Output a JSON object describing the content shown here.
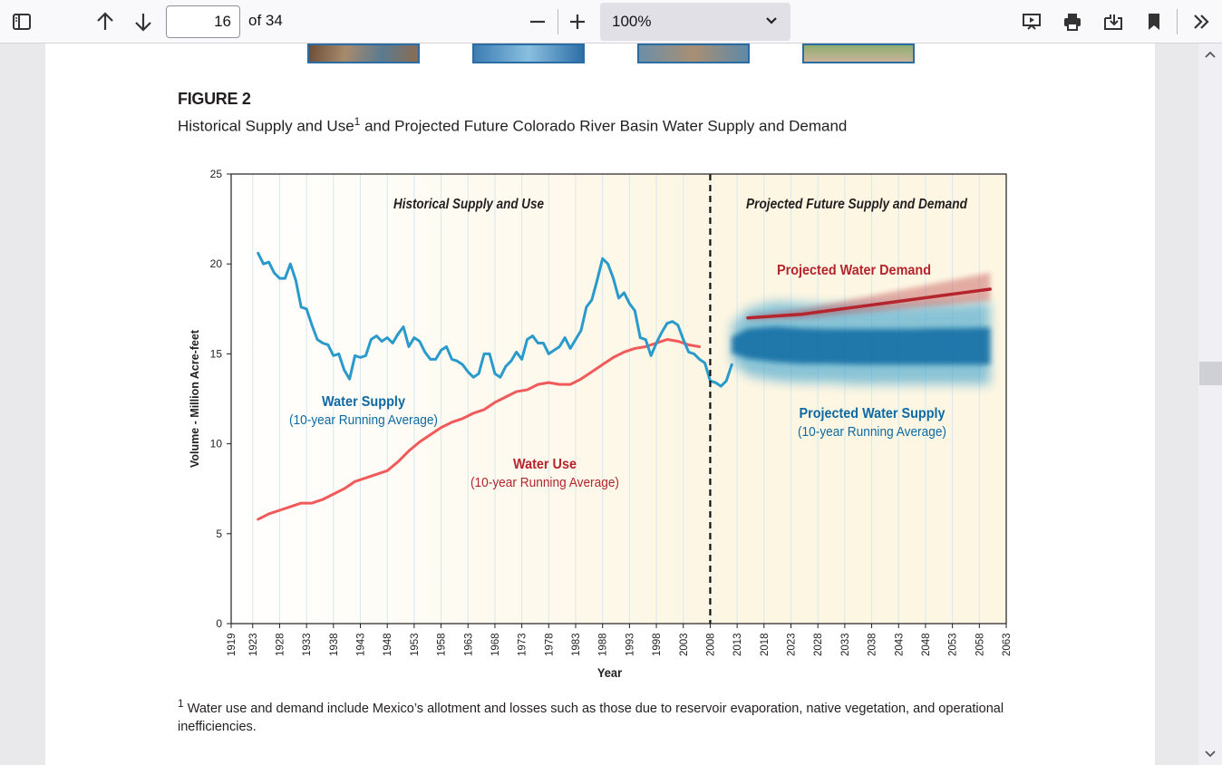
{
  "toolbar": {
    "page_number": "16",
    "page_count_label": "of 34",
    "zoom_value": "100%"
  },
  "figure": {
    "label": "FIGURE 2",
    "caption_part1": "Historical Supply and Use",
    "caption_sup": "1",
    "caption_part2": " and Projected Future Colorado River Basin Water Supply and Demand",
    "footnote_sup": "1",
    "footnote_text": " Water use and demand include Mexico’s allotment and losses such as those due to reservoir evaporation, native vegetation, and operational inefficiencies."
  },
  "colors": {
    "supply": "#2a9acb",
    "supply_dark": "#0d6aa3",
    "use": "#f05a5a",
    "demand": "#b5252e",
    "projected_bg": "#fdf6e3"
  },
  "chart_data": {
    "type": "line",
    "title": "",
    "xlabel": "Year",
    "ylabel": "Volume - Million Acre-feet",
    "xlim": [
      1919,
      2063
    ],
    "ylim": [
      0,
      25
    ],
    "y_ticks": [
      "0",
      "5",
      "10",
      "15",
      "20",
      "25"
    ],
    "x_ticks": [
      "1919",
      "1923",
      "1928",
      "1933",
      "1938",
      "1943",
      "1948",
      "1953",
      "1958",
      "1963",
      "1968",
      "1973",
      "1978",
      "1983",
      "1988",
      "1993",
      "1998",
      "2003",
      "2008",
      "2013",
      "2018",
      "2023",
      "2028",
      "2033",
      "2038",
      "2043",
      "2048",
      "2053",
      "2058",
      "2063"
    ],
    "divider_year": 2008,
    "grid": "vertical",
    "region_labels": {
      "historical": "Historical Supply and Use",
      "projected": "Projected Future Supply and Demand"
    },
    "series_labels": {
      "supply_title": "Water Supply",
      "supply_sub": "(10-year Running Average)",
      "use_title": "Water Use",
      "use_sub": "(10-year Running Average)",
      "demand_title": "Projected Water Demand",
      "proj_supply_title": "Projected Water Supply",
      "proj_supply_sub": "(10-year Running Average)"
    },
    "series": [
      {
        "name": "Water Supply",
        "x": [
          1924,
          1925,
          1926,
          1927,
          1928,
          1929,
          1930,
          1931,
          1932,
          1933,
          1934,
          1935,
          1936,
          1937,
          1938,
          1939,
          1940,
          1941,
          1942,
          1943,
          1944,
          1945,
          1946,
          1947,
          1948,
          1949,
          1950,
          1951,
          1952,
          1953,
          1954,
          1955,
          1956,
          1957,
          1958,
          1959,
          1960,
          1961,
          1962,
          1963,
          1964,
          1965,
          1966,
          1967,
          1968,
          1969,
          1970,
          1971,
          1972,
          1973,
          1974,
          1975,
          1976,
          1977,
          1978,
          1979,
          1980,
          1981,
          1982,
          1983,
          1984,
          1985,
          1986,
          1987,
          1988,
          1989,
          1990,
          1991,
          1992,
          1993,
          1994,
          1995,
          1996,
          1997,
          1998,
          1999,
          2000,
          2001,
          2002,
          2003,
          2004,
          2005,
          2006,
          2007,
          2008,
          2009,
          2010,
          2011,
          2012
        ],
        "y": [
          20.6,
          20.0,
          20.1,
          19.5,
          19.2,
          19.2,
          20.0,
          19.1,
          17.6,
          17.5,
          16.6,
          15.8,
          15.6,
          15.5,
          14.9,
          15.0,
          14.1,
          13.6,
          14.9,
          14.8,
          14.9,
          15.8,
          16.0,
          15.7,
          15.9,
          15.6,
          16.1,
          16.5,
          15.4,
          15.9,
          15.7,
          15.1,
          14.7,
          14.7,
          15.2,
          15.4,
          14.7,
          14.6,
          14.4,
          14.0,
          13.7,
          13.9,
          15.0,
          15.0,
          13.9,
          13.7,
          14.3,
          14.6,
          15.1,
          14.7,
          15.8,
          16.0,
          15.6,
          15.6,
          15.0,
          15.2,
          15.4,
          15.9,
          15.3,
          15.8,
          16.3,
          17.6,
          18.0,
          19.1,
          20.3,
          20.0,
          19.2,
          18.1,
          18.4,
          17.8,
          17.4,
          15.9,
          15.8,
          14.9,
          15.6,
          16.2,
          16.7,
          16.8,
          16.6,
          15.8,
          15.1,
          15.0,
          14.7,
          14.5,
          13.5,
          13.4,
          13.2,
          13.5,
          14.4
        ]
      },
      {
        "name": "Water Use",
        "x": [
          1924,
          1926,
          1928,
          1930,
          1932,
          1934,
          1936,
          1938,
          1940,
          1942,
          1944,
          1946,
          1948,
          1950,
          1952,
          1954,
          1956,
          1958,
          1960,
          1962,
          1964,
          1966,
          1968,
          1970,
          1972,
          1974,
          1976,
          1978,
          1980,
          1982,
          1984,
          1986,
          1988,
          1990,
          1992,
          1994,
          1996,
          1998,
          2000,
          2002,
          2004,
          2006
        ],
        "y": [
          5.8,
          6.1,
          6.3,
          6.5,
          6.7,
          6.7,
          6.9,
          7.2,
          7.5,
          7.9,
          8.1,
          8.3,
          8.5,
          9.0,
          9.6,
          10.1,
          10.5,
          10.9,
          11.2,
          11.4,
          11.7,
          11.9,
          12.3,
          12.6,
          12.9,
          13.0,
          13.3,
          13.4,
          13.3,
          13.3,
          13.6,
          14.0,
          14.4,
          14.8,
          15.1,
          15.3,
          15.4,
          15.6,
          15.8,
          15.7,
          15.5,
          15.4
        ]
      },
      {
        "name": "Projected Water Demand",
        "x": [
          2015,
          2020,
          2025,
          2030,
          2035,
          2040,
          2045,
          2050,
          2055,
          2060
        ],
        "y": [
          17.0,
          17.1,
          17.2,
          17.4,
          17.6,
          17.8,
          18.0,
          18.2,
          18.4,
          18.6
        ]
      },
      {
        "name": "Projected Water Supply",
        "x": [
          2012,
          2015,
          2020,
          2025,
          2030,
          2035,
          2040,
          2045,
          2050,
          2055,
          2060
        ],
        "y": [
          15.4,
          15.5,
          15.4,
          15.3,
          15.3,
          15.3,
          15.3,
          15.3,
          15.3,
          15.3,
          15.3
        ],
        "low": [
          14.6,
          13.8,
          13.5,
          13.4,
          13.4,
          13.3,
          13.3,
          13.3,
          13.3,
          13.3,
          13.3
        ],
        "high": [
          16.6,
          17.5,
          17.9,
          17.8,
          17.7,
          17.7,
          17.7,
          17.7,
          17.8,
          17.8,
          17.9
        ]
      }
    ]
  }
}
